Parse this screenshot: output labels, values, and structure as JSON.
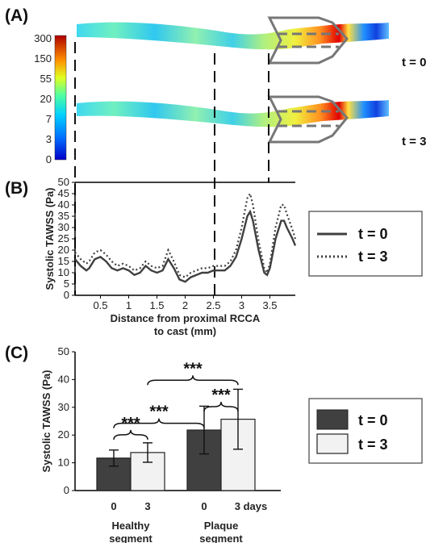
{
  "panels": {
    "a_label": "(A)",
    "b_label": "(B)",
    "c_label": "(C)"
  },
  "colors": {
    "t0": "#404040",
    "t3_fill": "#f2f2f2",
    "axis": "#000000",
    "cast": "#777777"
  },
  "panel_a": {
    "colorbar_ticks": [
      "300",
      "150",
      "55",
      "20",
      "7",
      "3",
      "0"
    ],
    "time_labels": [
      "t = 0",
      "t = 3"
    ]
  },
  "legend": {
    "t0": "t =  0",
    "t3": "t =  3"
  },
  "chart_data": [
    {
      "type": "line",
      "panel": "B",
      "xlabel": "Distance from proximal RCCA to cast (mm)",
      "xlabel_lines": [
        "Distance from proximal RCCA",
        "to cast (mm)"
      ],
      "ylabel": "Systolic TAWSS (Pa)",
      "xlim": [
        0.05,
        3.95
      ],
      "ylim": [
        0,
        50
      ],
      "xticks": [
        0.5,
        1,
        1.5,
        2,
        2.5,
        3,
        3.5
      ],
      "xtick_labels": [
        "0.5",
        "1",
        "1.5",
        "2",
        "2.5",
        "3",
        "3.5"
      ],
      "yticks": [
        0,
        5,
        10,
        15,
        20,
        25,
        30,
        35,
        40,
        45,
        50
      ],
      "marker_line_x": 2.82,
      "series": [
        {
          "name": "t =  0",
          "style": "solid",
          "x": [
            0.05,
            0.15,
            0.25,
            0.3,
            0.4,
            0.5,
            0.6,
            0.7,
            0.8,
            0.9,
            1.0,
            1.1,
            1.2,
            1.3,
            1.4,
            1.5,
            1.6,
            1.7,
            1.8,
            1.9,
            2.0,
            2.1,
            2.2,
            2.3,
            2.4,
            2.5,
            2.6,
            2.7,
            2.8,
            2.9,
            3.0,
            3.1,
            3.15,
            3.2,
            3.3,
            3.4,
            3.45,
            3.5,
            3.6,
            3.7,
            3.75,
            3.8,
            3.9,
            3.95
          ],
          "y": [
            16,
            13,
            11,
            12,
            16,
            17,
            15,
            12,
            11,
            12,
            11,
            9,
            10,
            13,
            11,
            10,
            11,
            16,
            12,
            7,
            6,
            8,
            9,
            10,
            10,
            11,
            11,
            11,
            13,
            17,
            25,
            35,
            37,
            33,
            20,
            10,
            9,
            12,
            25,
            33,
            33,
            30,
            25,
            22
          ]
        },
        {
          "name": "t =  3",
          "style": "dotted",
          "x": [
            0.05,
            0.15,
            0.25,
            0.3,
            0.4,
            0.5,
            0.6,
            0.7,
            0.8,
            0.9,
            1.0,
            1.1,
            1.2,
            1.3,
            1.4,
            1.5,
            1.6,
            1.7,
            1.8,
            1.9,
            2.0,
            2.1,
            2.2,
            2.3,
            2.4,
            2.5,
            2.6,
            2.7,
            2.8,
            2.9,
            3.0,
            3.1,
            3.15,
            3.2,
            3.3,
            3.4,
            3.45,
            3.5,
            3.6,
            3.7,
            3.75,
            3.8,
            3.9,
            3.95
          ],
          "y": [
            19,
            16,
            14,
            15,
            19,
            20,
            18,
            15,
            13,
            14,
            13,
            11,
            12,
            15,
            13,
            12,
            13,
            20,
            15,
            9,
            8,
            10,
            11,
            12,
            12,
            13,
            13,
            13,
            15,
            20,
            30,
            43,
            45,
            40,
            24,
            12,
            10,
            14,
            30,
            40,
            40,
            36,
            29,
            25
          ]
        }
      ]
    },
    {
      "type": "bar",
      "panel": "C",
      "ylabel": "Systolic TAWSS (Pa)",
      "ylim": [
        0,
        50
      ],
      "yticks": [
        0,
        10,
        20,
        30,
        40,
        50
      ],
      "groups": [
        "Healthy segment",
        "Plaque segment"
      ],
      "group_label_lines": [
        [
          "Healthy",
          "segment"
        ],
        [
          "Plaque",
          "segment"
        ]
      ],
      "bar_labels": [
        "0",
        "3",
        "0",
        "3 days"
      ],
      "series": [
        {
          "name": "t =  0",
          "values": [
            11.7,
            21.8
          ],
          "errors": [
            2.9,
            8.6
          ]
        },
        {
          "name": "t =  3",
          "values": [
            13.7,
            25.7
          ],
          "errors": [
            3.5,
            10.8
          ]
        }
      ],
      "significance": [
        {
          "label": "***",
          "between": "healthy t=0 vs t=3"
        },
        {
          "label": "***",
          "between": "plaque t=0 vs t=3"
        },
        {
          "label": "***",
          "between": "healthy t=0 vs plaque t=0"
        },
        {
          "label": "***",
          "between": "healthy t=3 vs plaque t=3"
        }
      ]
    }
  ]
}
